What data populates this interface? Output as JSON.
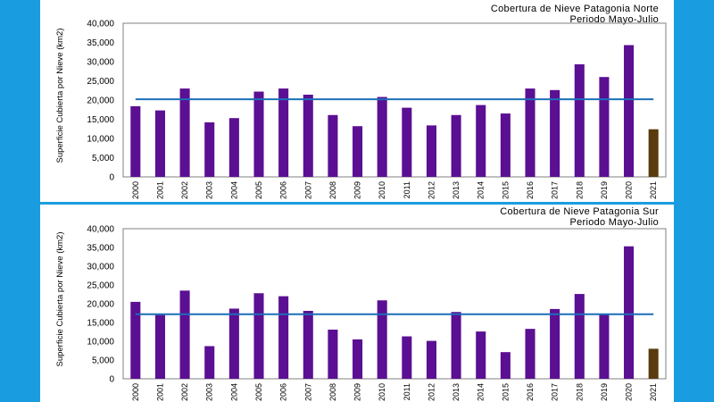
{
  "colors": {
    "background": "#1a9de0",
    "panel": "#ffffff",
    "bar": "#5b0f93",
    "bar_highlight": "#5a3b0d",
    "average_line": "#1d6fb8"
  },
  "chart_data": [
    {
      "type": "bar",
      "title": "Cobertura  de  Nieve  Patagonia  Norte",
      "subtitle": "Periodo  Mayo-Julio",
      "xlabel": "",
      "ylabel": "Superficie Cubierta por Nieve (km2)",
      "ylim": [
        0,
        40000
      ],
      "yticks": [
        "0",
        "5,000",
        "10,000",
        "15,000",
        "20,000",
        "25,000",
        "30,000",
        "35,000",
        "40,000"
      ],
      "categories": [
        "2000",
        "2001",
        "2002",
        "2003",
        "2004",
        "2005",
        "2006",
        "2007",
        "2008",
        "2009",
        "2010",
        "2011",
        "2012",
        "2013",
        "2014",
        "2015",
        "2016",
        "2017",
        "2018",
        "2019",
        "2020",
        "2021"
      ],
      "values": [
        18400,
        17300,
        23000,
        14200,
        15300,
        22200,
        23000,
        21400,
        16100,
        13200,
        20800,
        18000,
        13400,
        16100,
        18700,
        16500,
        23000,
        22600,
        29300,
        26000,
        34300,
        12400
      ],
      "highlight_index": 21,
      "average": 20200,
      "grid": false
    },
    {
      "type": "bar",
      "title": "Cobertura  de  Nieve  Patagonia  Sur",
      "subtitle": "Periodo  Mayo-Julio",
      "xlabel": "",
      "ylabel": "Superficie Cubierta por Nieve (km2)",
      "ylim": [
        0,
        40000
      ],
      "yticks": [
        "0",
        "5,000",
        "10,000",
        "15,000",
        "20,000",
        "25,000",
        "30,000",
        "35,000",
        "40,000"
      ],
      "categories": [
        "2000",
        "2001",
        "2002",
        "2003",
        "2004",
        "2005",
        "2006",
        "2007",
        "2008",
        "2009",
        "2010",
        "2011",
        "2012",
        "2013",
        "2014",
        "2015",
        "2016",
        "2017",
        "2018",
        "2019",
        "2020",
        "2021"
      ],
      "values": [
        20500,
        17000,
        23500,
        8700,
        18700,
        22800,
        22000,
        18100,
        13100,
        10500,
        20900,
        11300,
        10100,
        17800,
        12600,
        7100,
        13300,
        18600,
        22600,
        17200,
        35300,
        8000
      ],
      "highlight_index": 21,
      "average": 17200,
      "grid": false
    }
  ]
}
